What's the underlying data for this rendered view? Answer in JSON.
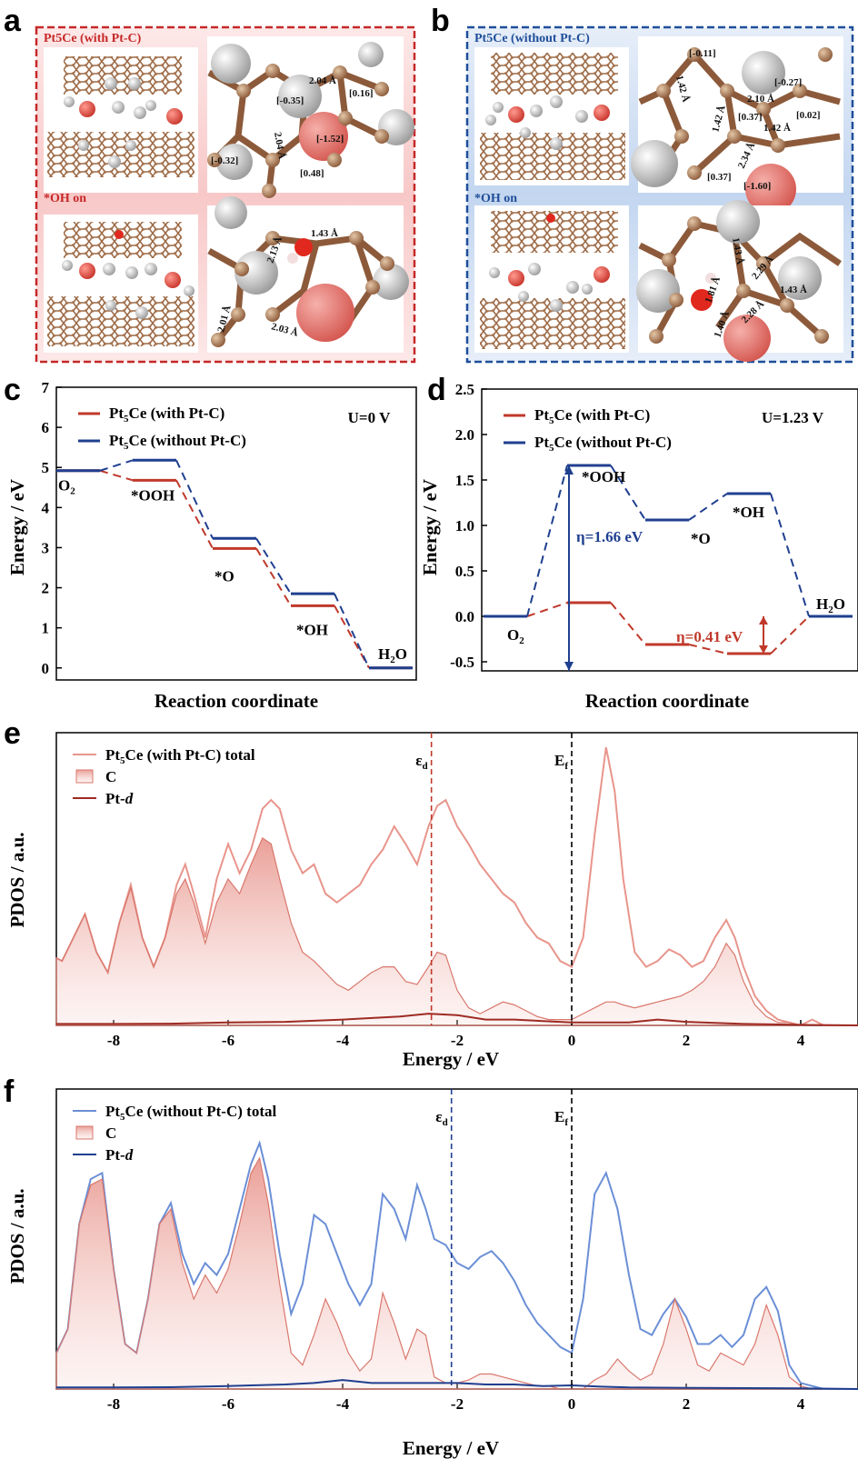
{
  "panel_labels": {
    "a": "a",
    "b": "b",
    "c": "c",
    "d": "d",
    "e": "e",
    "f": "f"
  },
  "panel_a": {
    "title_top": "Pt5Ce (with Pt-C)",
    "title_bottom": "*OH on",
    "border_color": "#c62828",
    "charges_top": [
      "[-0.35]",
      "[-1.52]",
      "[0.16]",
      "[-0.32]",
      "[0.48]"
    ],
    "bonds_top": [
      "2.04 Å",
      "2.04 Å"
    ],
    "bonds_bottom": [
      "1.43 Å",
      "2.13 Å",
      "2.01 Å",
      "2.03 Å"
    ]
  },
  "panel_b": {
    "title_top": "Pt5Ce (without Pt-C)",
    "title_bottom": "*OH on",
    "border_color": "#1f4e99",
    "charges_top": [
      "[-0.11]",
      "[-0.27]",
      "[0.37]",
      "[0.02]",
      "[0.37]",
      "[-1.60]"
    ],
    "bonds_top": [
      "1.42 Å",
      "2.10 Å",
      "1.42 Å",
      "1.42 Å",
      "2.34 Å"
    ],
    "bonds_bottom": [
      "1.43 Å",
      "2.29 Å",
      "1.43 Å",
      "1.81 Å",
      "1.40 Å",
      "2.28 Å"
    ]
  },
  "chart_data": [
    {
      "panel": "c",
      "type": "line",
      "subtype": "energy-profile",
      "xlabel": "Reaction coordinate",
      "ylabel": "Energy / eV",
      "ylim": [
        -0.3,
        7
      ],
      "yticks": [
        0,
        1,
        2,
        3,
        4,
        5,
        6,
        7
      ],
      "condition": "U=0 V",
      "states": [
        "O2",
        "*OOH",
        "*O",
        "*OH",
        "H2O"
      ],
      "state_labels": [
        "O",
        "*OOH",
        "*O",
        "*OH",
        "H O"
      ],
      "series": [
        {
          "name": "Pt5Ce (with Pt-C)",
          "color": "#c0392b",
          "values": [
            4.92,
            4.68,
            2.98,
            1.55,
            0
          ]
        },
        {
          "name": "Pt5Ce (without Pt-C)",
          "color": "#1f3f8f",
          "values": [
            4.92,
            5.18,
            3.23,
            1.85,
            0
          ]
        }
      ],
      "legend": "top-left"
    },
    {
      "panel": "d",
      "type": "line",
      "subtype": "energy-profile",
      "xlabel": "Reaction coordinate",
      "ylabel": "Energy / eV",
      "ylim": [
        -0.6,
        2.5
      ],
      "yticks": [
        -0.5,
        0.0,
        0.5,
        1.0,
        1.5,
        2.0,
        2.5
      ],
      "condition": "U=1.23 V",
      "states": [
        "O2",
        "*OOH",
        "*O",
        "*OH",
        "H2O"
      ],
      "state_labels": [
        "O",
        "*OOH",
        "*O",
        "*OH",
        "H O"
      ],
      "series": [
        {
          "name": "Pt5Ce (with Pt-C)",
          "color": "#c0392b",
          "values": [
            0,
            0.15,
            -0.31,
            -0.41,
            0
          ]
        },
        {
          "name": "Pt5Ce (without Pt-C)",
          "color": "#1f3f8f",
          "values": [
            0,
            1.66,
            1.06,
            1.35,
            0
          ]
        }
      ],
      "annotations": [
        "η=1.66 eV",
        "η=0.41 eV"
      ],
      "legend": "top-left"
    },
    {
      "panel": "e",
      "type": "area",
      "xlabel": "Energy / eV",
      "ylabel": "PDOS / a.u.",
      "xlim": [
        -9,
        5
      ],
      "xticks": [
        -8,
        -6,
        -4,
        -2,
        0,
        2,
        4
      ],
      "vlines": [
        {
          "label": "εd",
          "x": -2.45,
          "color": "#c0392b"
        },
        {
          "label": "Ef",
          "x": 0,
          "color": "#000000"
        }
      ],
      "series": [
        {
          "name": "Pt5Ce (with Pt-C) total",
          "style": "line",
          "color": "#e8958c",
          "x": [
            -9,
            -8.9,
            -8.7,
            -8.5,
            -8.3,
            -8.1,
            -7.9,
            -7.7,
            -7.5,
            -7.3,
            -7.1,
            -6.9,
            -6.75,
            -6.6,
            -6.4,
            -6.2,
            -6.0,
            -5.8,
            -5.6,
            -5.4,
            -5.25,
            -5.1,
            -4.9,
            -4.7,
            -4.5,
            -4.3,
            -4.1,
            -3.9,
            -3.7,
            -3.5,
            -3.3,
            -3.1,
            -2.9,
            -2.7,
            -2.5,
            -2.35,
            -2.2,
            -2.0,
            -1.8,
            -1.6,
            -1.4,
            -1.2,
            -1.0,
            -0.8,
            -0.6,
            -0.4,
            -0.2,
            0.0,
            0.2,
            0.4,
            0.6,
            0.75,
            0.9,
            1.1,
            1.3,
            1.5,
            1.7,
            1.9,
            2.1,
            2.3,
            2.5,
            2.7,
            2.85,
            3.0,
            3.2,
            3.4,
            3.6,
            3.8,
            4.0,
            4.2,
            4.4,
            4.6,
            4.8,
            5.0
          ],
          "y": [
            0.23,
            0.22,
            0.3,
            0.38,
            0.25,
            0.18,
            0.35,
            0.48,
            0.3,
            0.2,
            0.3,
            0.48,
            0.55,
            0.45,
            0.3,
            0.5,
            0.62,
            0.52,
            0.6,
            0.74,
            0.77,
            0.74,
            0.6,
            0.52,
            0.55,
            0.45,
            0.42,
            0.45,
            0.48,
            0.55,
            0.6,
            0.68,
            0.62,
            0.55,
            0.68,
            0.75,
            0.77,
            0.68,
            0.62,
            0.55,
            0.5,
            0.45,
            0.42,
            0.35,
            0.3,
            0.28,
            0.22,
            0.2,
            0.3,
            0.65,
            0.95,
            0.8,
            0.5,
            0.25,
            0.2,
            0.22,
            0.26,
            0.24,
            0.2,
            0.22,
            0.3,
            0.36,
            0.3,
            0.2,
            0.1,
            0.05,
            0.02,
            0.01,
            0.0,
            0.02,
            0.0,
            0.0,
            0.0,
            0.0
          ]
        },
        {
          "name": "C",
          "style": "fill",
          "color": "#e8958c",
          "x": [
            -9,
            -8.9,
            -8.7,
            -8.5,
            -8.3,
            -8.1,
            -7.9,
            -7.7,
            -7.5,
            -7.3,
            -7.1,
            -6.9,
            -6.75,
            -6.6,
            -6.4,
            -6.2,
            -6.0,
            -5.8,
            -5.6,
            -5.4,
            -5.25,
            -5.1,
            -4.9,
            -4.7,
            -4.5,
            -4.3,
            -4.1,
            -3.9,
            -3.7,
            -3.5,
            -3.3,
            -3.1,
            -2.9,
            -2.7,
            -2.5,
            -2.35,
            -2.2,
            -2.0,
            -1.8,
            -1.6,
            -1.4,
            -1.2,
            -1.0,
            -0.8,
            -0.6,
            -0.4,
            -0.2,
            0.0,
            0.2,
            0.4,
            0.6,
            0.75,
            0.9,
            1.1,
            1.3,
            1.5,
            1.7,
            1.9,
            2.1,
            2.3,
            2.5,
            2.7,
            2.85,
            3.0,
            3.2,
            3.4,
            3.6,
            3.8,
            4.0,
            4.2,
            4.4,
            4.6,
            4.8,
            5.0
          ],
          "y": [
            0.23,
            0.22,
            0.3,
            0.38,
            0.25,
            0.18,
            0.35,
            0.47,
            0.3,
            0.2,
            0.3,
            0.45,
            0.5,
            0.42,
            0.28,
            0.42,
            0.5,
            0.45,
            0.55,
            0.64,
            0.62,
            0.5,
            0.35,
            0.25,
            0.22,
            0.18,
            0.14,
            0.12,
            0.15,
            0.18,
            0.2,
            0.2,
            0.15,
            0.14,
            0.2,
            0.25,
            0.24,
            0.12,
            0.06,
            0.04,
            0.06,
            0.08,
            0.07,
            0.05,
            0.03,
            0.02,
            0.02,
            0.02,
            0.04,
            0.06,
            0.08,
            0.08,
            0.07,
            0.06,
            0.07,
            0.08,
            0.09,
            0.1,
            0.12,
            0.15,
            0.2,
            0.28,
            0.24,
            0.15,
            0.07,
            0.03,
            0.01,
            0.01,
            0.0,
            0.0,
            0.0,
            0.0,
            0.0,
            0.0
          ]
        },
        {
          "name": "Pt-d",
          "style": "line",
          "color": "#9e2b23",
          "x": [
            -9,
            -8,
            -7,
            -6,
            -5,
            -4,
            -3,
            -2.5,
            -2,
            -1.5,
            -1,
            -0.5,
            0,
            0.5,
            1,
            1.5,
            2,
            3,
            4,
            5
          ],
          "y": [
            0.005,
            0.005,
            0.006,
            0.01,
            0.012,
            0.02,
            0.03,
            0.04,
            0.035,
            0.02,
            0.02,
            0.015,
            0.01,
            0.01,
            0.01,
            0.02,
            0.012,
            0.005,
            0.002,
            0.0
          ]
        }
      ],
      "legend": "top-left"
    },
    {
      "panel": "f",
      "type": "area",
      "xlabel": "Energy / eV",
      "ylabel": "PDOS / a.u.",
      "xlim": [
        -9,
        5
      ],
      "xticks": [
        -8,
        -6,
        -4,
        -2,
        0,
        2,
        4
      ],
      "vlines": [
        {
          "label": "εd",
          "x": -2.1,
          "color": "#1f3f8f"
        },
        {
          "label": "Ef",
          "x": 0,
          "color": "#000000"
        }
      ],
      "series": [
        {
          "name": "Pt5Ce (without Pt-C) total",
          "style": "line",
          "color": "#6b8fd6",
          "x": [
            -9,
            -8.8,
            -8.6,
            -8.4,
            -8.2,
            -8.0,
            -7.8,
            -7.6,
            -7.4,
            -7.2,
            -7.0,
            -6.8,
            -6.6,
            -6.4,
            -6.2,
            -6.0,
            -5.8,
            -5.6,
            -5.45,
            -5.3,
            -5.1,
            -4.9,
            -4.7,
            -4.5,
            -4.3,
            -4.1,
            -3.9,
            -3.7,
            -3.5,
            -3.3,
            -3.1,
            -2.9,
            -2.7,
            -2.55,
            -2.4,
            -2.2,
            -2.0,
            -1.8,
            -1.6,
            -1.4,
            -1.2,
            -1.0,
            -0.8,
            -0.6,
            -0.4,
            -0.2,
            0.0,
            0.2,
            0.4,
            0.6,
            0.8,
            1.0,
            1.2,
            1.4,
            1.6,
            1.8,
            2.0,
            2.2,
            2.4,
            2.6,
            2.8,
            3.0,
            3.2,
            3.4,
            3.6,
            3.8,
            4.0,
            4.2,
            4.4,
            4.6,
            4.8,
            5.0
          ],
          "y": [
            0.12,
            0.2,
            0.55,
            0.7,
            0.72,
            0.4,
            0.15,
            0.12,
            0.3,
            0.55,
            0.62,
            0.45,
            0.35,
            0.42,
            0.38,
            0.45,
            0.6,
            0.75,
            0.82,
            0.7,
            0.45,
            0.25,
            0.35,
            0.58,
            0.55,
            0.45,
            0.35,
            0.28,
            0.35,
            0.65,
            0.6,
            0.5,
            0.68,
            0.6,
            0.5,
            0.48,
            0.42,
            0.4,
            0.44,
            0.46,
            0.42,
            0.36,
            0.28,
            0.22,
            0.18,
            0.14,
            0.12,
            0.3,
            0.65,
            0.72,
            0.6,
            0.38,
            0.2,
            0.18,
            0.25,
            0.3,
            0.24,
            0.15,
            0.15,
            0.18,
            0.14,
            0.18,
            0.3,
            0.34,
            0.26,
            0.08,
            0.02,
            0.01,
            0.0,
            0.0,
            0.0,
            0.0
          ]
        },
        {
          "name": "C",
          "style": "fill",
          "color": "#e8958c",
          "x": [
            -9,
            -8.8,
            -8.6,
            -8.4,
            -8.2,
            -8.0,
            -7.8,
            -7.6,
            -7.4,
            -7.2,
            -7.0,
            -6.8,
            -6.6,
            -6.4,
            -6.2,
            -6.0,
            -5.8,
            -5.6,
            -5.45,
            -5.3,
            -5.1,
            -4.9,
            -4.7,
            -4.5,
            -4.3,
            -4.1,
            -3.9,
            -3.7,
            -3.5,
            -3.3,
            -3.1,
            -2.9,
            -2.7,
            -2.55,
            -2.4,
            -2.2,
            -2.0,
            -1.8,
            -1.6,
            -1.4,
            -1.2,
            -1.0,
            -0.8,
            -0.6,
            -0.4,
            -0.2,
            0.0,
            0.2,
            0.4,
            0.6,
            0.8,
            1.0,
            1.2,
            1.4,
            1.6,
            1.8,
            2.0,
            2.2,
            2.4,
            2.6,
            2.8,
            3.0,
            3.2,
            3.4,
            3.6,
            3.8,
            4.0,
            4.2,
            4.4,
            4.6,
            4.8,
            5.0
          ],
          "y": [
            0.12,
            0.2,
            0.55,
            0.68,
            0.7,
            0.4,
            0.15,
            0.12,
            0.3,
            0.55,
            0.6,
            0.42,
            0.3,
            0.38,
            0.32,
            0.4,
            0.55,
            0.72,
            0.77,
            0.62,
            0.35,
            0.12,
            0.08,
            0.18,
            0.3,
            0.22,
            0.12,
            0.06,
            0.1,
            0.32,
            0.22,
            0.1,
            0.2,
            0.18,
            0.04,
            0.02,
            0.02,
            0.03,
            0.05,
            0.05,
            0.04,
            0.03,
            0.02,
            0.01,
            0.01,
            0.0,
            0.0,
            0.0,
            0.03,
            0.05,
            0.1,
            0.06,
            0.03,
            0.05,
            0.15,
            0.3,
            0.2,
            0.08,
            0.06,
            0.12,
            0.1,
            0.08,
            0.15,
            0.28,
            0.18,
            0.04,
            0.01,
            0.0,
            0.0,
            0.0,
            0.0,
            0.0
          ]
        },
        {
          "name": "Pt-d",
          "style": "line",
          "color": "#1f3f8f",
          "x": [
            -9,
            -8,
            -7,
            -6,
            -5,
            -4.5,
            -4,
            -3.5,
            -3,
            -2.5,
            -2,
            -1.5,
            -1,
            -0.5,
            0,
            0.5,
            1,
            2,
            3,
            4,
            5
          ],
          "y": [
            0.005,
            0.005,
            0.006,
            0.01,
            0.015,
            0.02,
            0.03,
            0.02,
            0.02,
            0.02,
            0.02,
            0.015,
            0.015,
            0.01,
            0.012,
            0.008,
            0.005,
            0.004,
            0.003,
            0.002,
            0.0
          ]
        }
      ],
      "legend": "top-left"
    }
  ]
}
